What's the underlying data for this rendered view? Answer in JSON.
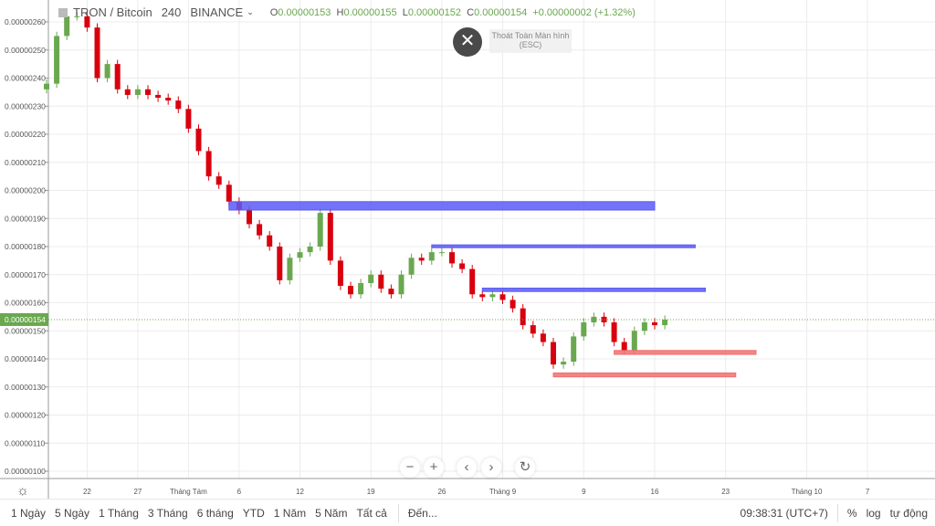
{
  "legend": {
    "symbol": "TRON / Bitcoin",
    "interval": "240",
    "exchange": "BINANCE",
    "o_label": "O",
    "o": "0.00000153",
    "h_label": "H",
    "h": "0.00000155",
    "l_label": "L",
    "l": "0.00000152",
    "c_label": "C",
    "c": "0.00000154",
    "change": "+0.00000002 (+1.32%)"
  },
  "exit_tooltip": "Thoát Toàn Màn hình",
  "exit_key": "(ESC)",
  "close_icon": "close-icon",
  "colors": {
    "up": "#6aa84f",
    "down": "#d9000d",
    "zone_blue": "#5b5bf5",
    "zone_red": "#f07070",
    "last_price": "#6aa84f",
    "grid": "#ececec"
  },
  "chart_data": {
    "type": "candlestick",
    "yticks": [
      "0.00000260",
      "0.00000250",
      "0.00000240",
      "0.00000230",
      "0.00000220",
      "0.00000210",
      "0.00000200",
      "0.00000190",
      "0.00000180",
      "0.00000170",
      "0.00000160",
      "0.00000150",
      "0.00000140",
      "0.00000130",
      "0.00000120",
      "0.00000110",
      "0.00000100"
    ],
    "ylim": [
      9.9e-07,
      2.68e-06
    ],
    "last_price": "0.00000154",
    "first_date": "07-18",
    "closes": [
      238,
      255,
      262,
      262,
      258,
      240,
      245,
      236,
      234,
      236,
      234,
      233,
      232,
      229,
      222,
      214,
      205,
      202,
      196,
      193,
      188,
      184,
      180,
      168,
      176,
      178,
      180,
      192,
      175,
      166,
      163,
      167,
      170,
      165,
      163,
      170,
      176,
      175,
      178,
      178,
      174,
      172,
      163,
      162,
      163,
      161,
      158,
      152,
      149,
      146,
      138,
      139,
      148,
      153,
      155,
      153,
      146,
      143,
      150,
      153,
      152,
      154
    ],
    "closes_unit": "1e-8",
    "xticks": [
      {
        "label": "22",
        "date": "07-22"
      },
      {
        "label": "27",
        "date": "07-27"
      },
      {
        "label": "Tháng Tám",
        "date": "08-01"
      },
      {
        "label": "6",
        "date": "08-06"
      },
      {
        "label": "12",
        "date": "08-12"
      },
      {
        "label": "19",
        "date": "08-19"
      },
      {
        "label": "26",
        "date": "08-26"
      },
      {
        "label": "Tháng 9",
        "date": "09-01"
      },
      {
        "label": "9",
        "date": "09-09"
      },
      {
        "label": "16",
        "date": "09-16"
      },
      {
        "label": "23",
        "date": "09-23"
      },
      {
        "label": "Tháng 10",
        "date": "10-01"
      },
      {
        "label": "7",
        "date": "10-07"
      }
    ],
    "zones": [
      {
        "color": "blue",
        "start": "08-05",
        "end": "09-16",
        "low": 193,
        "high": 196
      },
      {
        "color": "blue",
        "start": "08-25",
        "end": "09-20",
        "low": 179.6,
        "high": 180.6
      },
      {
        "color": "blue",
        "start": "08-30",
        "end": "09-21",
        "low": 164,
        "high": 165.2
      },
      {
        "color": "red",
        "start": "09-12",
        "end": "09-26",
        "low": 141.6,
        "high": 143
      },
      {
        "color": "red",
        "start": "09-06",
        "end": "09-24",
        "low": 133.6,
        "high": 135
      }
    ]
  },
  "nav": {
    "zoom_out": "−",
    "zoom_in": "+",
    "left": "‹",
    "right": "›",
    "reset": "↻"
  },
  "ranges": [
    "1 Ngày",
    "5 Ngày",
    "1 Tháng",
    "3 Tháng",
    "6 tháng",
    "YTD",
    "1 Năm",
    "5 Năm",
    "Tất cả"
  ],
  "goto": "Đến...",
  "clock": "09:38:31 (UTC+7)",
  "percent": "%",
  "log": "log",
  "auto": "tự động"
}
